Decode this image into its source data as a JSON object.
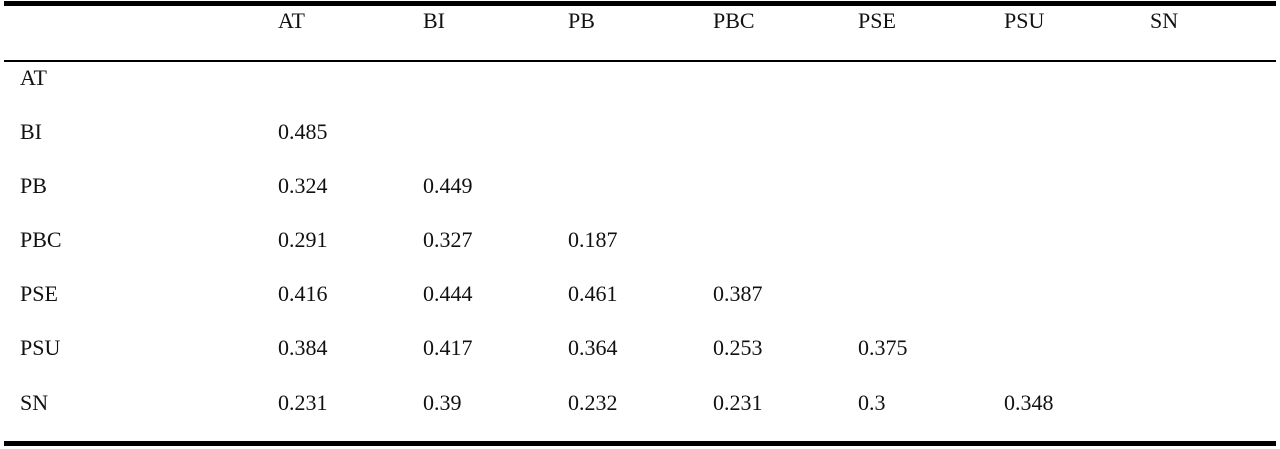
{
  "table": {
    "columns": [
      "",
      "AT",
      "BI",
      "PB",
      "PBC",
      "PSE",
      "PSU",
      "SN"
    ],
    "rows": [
      {
        "label": "AT",
        "values": [
          "",
          "",
          "",
          "",
          "",
          "",
          ""
        ]
      },
      {
        "label": "BI",
        "values": [
          "0.485",
          "",
          "",
          "",
          "",
          "",
          ""
        ]
      },
      {
        "label": "PB",
        "values": [
          "0.324",
          "0.449",
          "",
          "",
          "",
          "",
          ""
        ]
      },
      {
        "label": "PBC",
        "values": [
          "0.291",
          "0.327",
          "0.187",
          "",
          "",
          "",
          ""
        ]
      },
      {
        "label": "PSE",
        "values": [
          "0.416",
          "0.444",
          "0.461",
          "0.387",
          "",
          "",
          ""
        ]
      },
      {
        "label": "PSU",
        "values": [
          "0.384",
          "0.417",
          "0.364",
          "0.253",
          "0.375",
          "",
          ""
        ]
      },
      {
        "label": "SN",
        "values": [
          "0.231",
          "0.39",
          "0.232",
          "0.231",
          "0.3",
          "0.348",
          ""
        ]
      }
    ]
  }
}
